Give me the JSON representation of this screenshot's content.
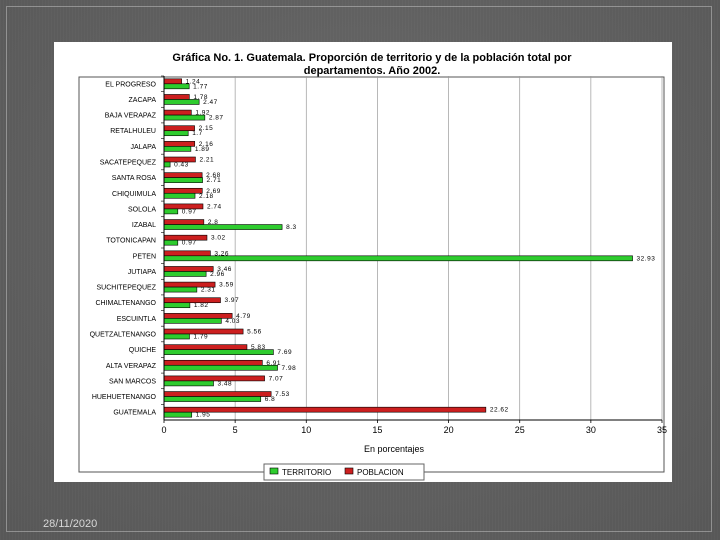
{
  "footer": {
    "date": "28/11/2020"
  },
  "colors": {
    "territorio": "#2ecc2e",
    "poblacion": "#cc1f1f",
    "grid": "#9a9a9a"
  },
  "chart_data": {
    "type": "bar",
    "orientation": "horizontal",
    "title_line1": "Gráfica No. 1.  Guatemala.  Proporción de territorio y de la población total por",
    "title_line2": "departamentos.  Año 2002.",
    "xlabel": "En porcentajes",
    "xlim": [
      0,
      35
    ],
    "xticks": [
      "0",
      "5",
      "10",
      "15",
      "20",
      "25",
      "30",
      "35"
    ],
    "grid": true,
    "legend_position": "bottom",
    "categories": [
      "EL PROGRESO",
      "ZACAPA",
      "BAJA VERAPAZ",
      "RETALHULEU",
      "JALAPA",
      "SACATEPEQUEZ",
      "SANTA ROSA",
      "CHIQUIMULA",
      "SOLOLA",
      "IZABAL",
      "TOTONICAPAN",
      "PETEN",
      "JUTIAPA",
      "SUCHITEPEQUEZ",
      "CHIMALTENANGO",
      "ESCUINTLA",
      "QUETZALTENANGO",
      "QUICHE",
      "ALTA VERAPAZ",
      "SAN MARCOS",
      "HUEHUETENANGO",
      "GUATEMALA"
    ],
    "series": [
      {
        "name": "POBLACION",
        "values": [
          1.24,
          1.78,
          1.92,
          2.15,
          2.16,
          2.21,
          2.68,
          2.69,
          2.74,
          2.8,
          3.02,
          3.26,
          3.46,
          3.59,
          3.97,
          4.79,
          5.56,
          5.83,
          6.91,
          7.07,
          7.53,
          22.62
        ]
      },
      {
        "name": "TERRITORIO",
        "values": [
          1.77,
          2.47,
          2.87,
          1.7,
          1.89,
          0.43,
          2.71,
          2.18,
          0.97,
          8.3,
          0.97,
          32.93,
          2.96,
          2.31,
          1.82,
          4.03,
          1.79,
          7.69,
          7.98,
          3.48,
          6.8,
          1.95
        ]
      }
    ],
    "legend": [
      "TERRITORIO",
      "POBLACION"
    ]
  }
}
